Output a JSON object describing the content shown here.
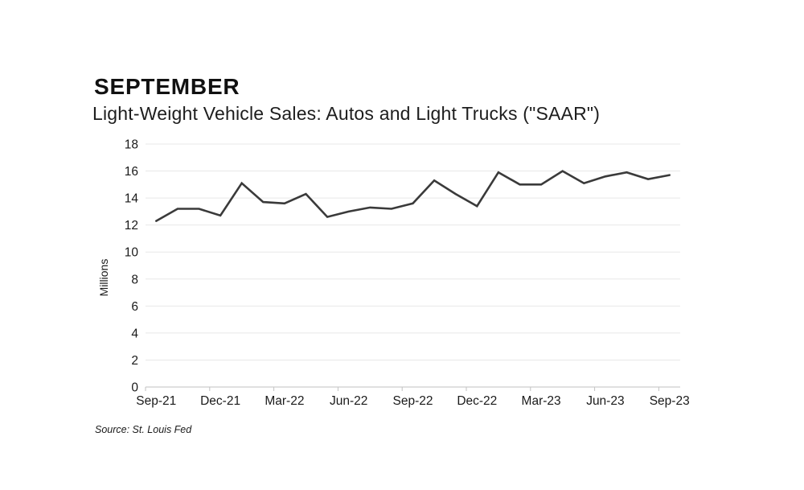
{
  "page": {
    "kicker": "SEPTEMBER",
    "title": "Light-Weight Vehicle Sales: Autos and Light Trucks (\"SAAR\")",
    "source": "Source: St. Louis Fed"
  },
  "chart_data": {
    "type": "line",
    "title": "SEPTEMBER",
    "subtitle": "Light-Weight Vehicle Sales: Autos and Light Trucks (\"SAAR\")",
    "source": "Source: St. Louis Fed",
    "xlabel": "",
    "ylabel": "Millions",
    "ylim": [
      0,
      18
    ],
    "ytick_step": 2,
    "ytick_labels": [
      "0",
      "2",
      "4",
      "6",
      "8",
      "10",
      "12",
      "14",
      "16",
      "18"
    ],
    "grid": true,
    "legend": "none",
    "colors": {
      "series_line": "#3a3a3a",
      "gridline": "#e8e8e8",
      "axis_line": "#c2c2c2",
      "tick_text": "#1a1a1a",
      "background": "#ffffff"
    },
    "x": [
      "Sep-21",
      "Oct-21",
      "Nov-21",
      "Dec-21",
      "Jan-22",
      "Feb-22",
      "Mar-22",
      "Apr-22",
      "May-22",
      "Jun-22",
      "Jul-22",
      "Aug-22",
      "Sep-22",
      "Oct-22",
      "Nov-22",
      "Dec-22",
      "Jan-23",
      "Feb-23",
      "Mar-23",
      "Apr-23",
      "May-23",
      "Jun-23",
      "Jul-23",
      "Aug-23",
      "Sep-23"
    ],
    "xtick_every": 3,
    "xtick_labels": [
      "Sep-21",
      "Dec-21",
      "Mar-22",
      "Jun-22",
      "Sep-22",
      "Dec-22",
      "Mar-23",
      "Jun-23",
      "Sep-23"
    ],
    "series": [
      {
        "name": "Light-Weight Vehicle Sales (SAAR, millions)",
        "values": [
          12.3,
          13.2,
          13.2,
          12.7,
          15.1,
          13.7,
          13.6,
          14.3,
          12.6,
          13.0,
          13.3,
          13.2,
          13.6,
          15.3,
          14.3,
          13.4,
          15.9,
          15.0,
          15.0,
          16.0,
          15.1,
          15.6,
          15.9,
          15.4,
          15.7
        ]
      }
    ]
  }
}
